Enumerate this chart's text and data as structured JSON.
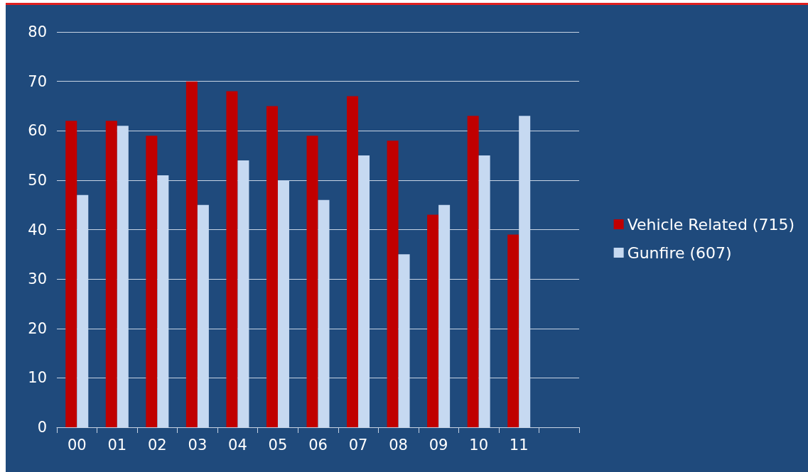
{
  "chart_data": {
    "type": "bar",
    "categories": [
      "00",
      "01",
      "02",
      "03",
      "04",
      "05",
      "06",
      "07",
      "08",
      "09",
      "10",
      "11",
      null
    ],
    "series": [
      {
        "name": "Vehicle Related (715)",
        "color": "#c00000",
        "values": [
          62,
          62,
          59,
          70,
          68,
          65,
          59,
          67,
          58,
          43,
          63,
          39,
          null
        ]
      },
      {
        "name": "Gunfire (607)",
        "color": "#c6d9f1",
        "values": [
          47,
          61,
          51,
          45,
          54,
          50,
          46,
          55,
          35,
          45,
          55,
          63,
          null
        ]
      }
    ],
    "ylim": [
      0,
      80
    ],
    "yticks": [
      0,
      10,
      20,
      30,
      40,
      50,
      60,
      70,
      80
    ],
    "grid": "y",
    "legend": "right"
  }
}
